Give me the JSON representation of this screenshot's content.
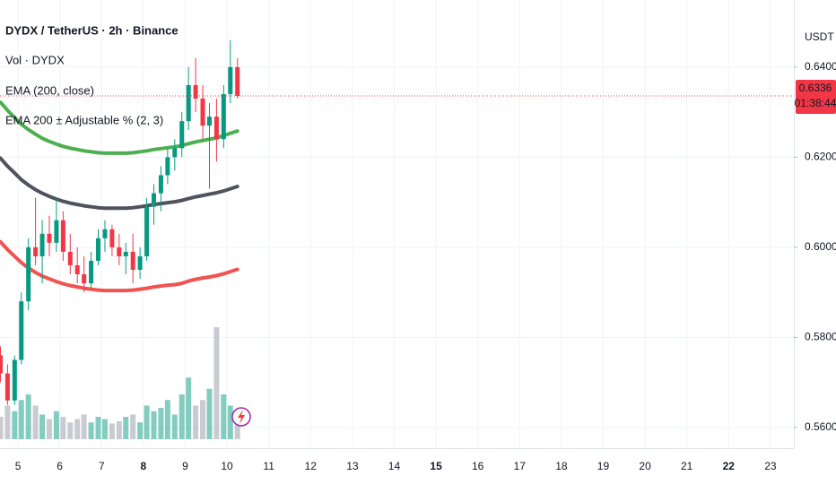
{
  "chart_data": {
    "type": "candlestick",
    "title": "DYDX / TetherUS · 2h · Binance",
    "indicators": [
      "Vol · DYDX",
      "EMA (200, close)",
      "EMA 200 ± Adjustable % (2, 3)"
    ],
    "currency": "USDT",
    "countdown": "01:38:44",
    "x": [
      4.58,
      4.75,
      4.92,
      5.08,
      5.25,
      5.42,
      5.58,
      5.75,
      5.92,
      6.08,
      6.25,
      6.42,
      6.58,
      6.75,
      6.92,
      7.08,
      7.25,
      7.42,
      7.58,
      7.75,
      7.92,
      8.08,
      8.25,
      8.42,
      8.58,
      8.75,
      8.92,
      9.08,
      9.25,
      9.42,
      9.58,
      9.75,
      9.92,
      10.08,
      10.25
    ],
    "open": [
      0.576,
      0.572,
      0.566,
      0.575,
      0.588,
      0.6,
      0.598,
      0.603,
      0.601,
      0.606,
      0.599,
      0.596,
      0.594,
      0.592,
      0.597,
      0.602,
      0.604,
      0.6,
      0.598,
      0.599,
      0.595,
      0.598,
      0.609,
      0.612,
      0.616,
      0.62,
      0.622,
      0.628,
      0.636,
      0.633,
      0.627,
      0.629,
      0.624,
      0.634,
      0.64
    ],
    "high": [
      0.578,
      0.574,
      0.576,
      0.59,
      0.602,
      0.611,
      0.606,
      0.607,
      0.611,
      0.608,
      0.603,
      0.6,
      0.598,
      0.599,
      0.604,
      0.606,
      0.605,
      0.603,
      0.601,
      0.603,
      0.6,
      0.611,
      0.614,
      0.618,
      0.622,
      0.624,
      0.63,
      0.64,
      0.642,
      0.636,
      0.632,
      0.633,
      0.636,
      0.646,
      0.642
    ],
    "low": [
      0.57,
      0.565,
      0.565,
      0.574,
      0.586,
      0.596,
      0.592,
      0.598,
      0.599,
      0.597,
      0.594,
      0.592,
      0.59,
      0.591,
      0.596,
      0.599,
      0.598,
      0.596,
      0.594,
      0.592,
      0.593,
      0.597,
      0.605,
      0.608,
      0.614,
      0.617,
      0.62,
      0.626,
      0.63,
      0.624,
      0.613,
      0.619,
      0.622,
      0.632,
      0.633
    ],
    "close": [
      0.572,
      0.566,
      0.575,
      0.588,
      0.6,
      0.598,
      0.603,
      0.601,
      0.606,
      0.599,
      0.596,
      0.594,
      0.592,
      0.597,
      0.602,
      0.604,
      0.6,
      0.598,
      0.599,
      0.595,
      0.598,
      0.609,
      0.612,
      0.616,
      0.62,
      0.622,
      0.628,
      0.636,
      0.633,
      0.627,
      0.629,
      0.624,
      0.634,
      0.64,
      0.6336
    ],
    "volume": [
      20,
      30,
      25,
      35,
      40,
      30,
      22,
      18,
      25,
      20,
      15,
      18,
      22,
      15,
      20,
      18,
      14,
      16,
      20,
      22,
      15,
      30,
      25,
      28,
      35,
      22,
      40,
      55,
      30,
      35,
      45,
      100,
      40,
      30,
      25
    ],
    "up_color": "#089981",
    "down_color": "#f23645",
    "lines": [
      {
        "color": "#4caf50",
        "values": [
          0.6322,
          0.6304,
          0.6288,
          0.6273,
          0.6261,
          0.6251,
          0.6242,
          0.6235,
          0.6229,
          0.6224,
          0.622,
          0.6217,
          0.6214,
          0.6212,
          0.621,
          0.6209,
          0.6209,
          0.6209,
          0.6209,
          0.621,
          0.6212,
          0.6214,
          0.6217,
          0.6219,
          0.6221,
          0.6223,
          0.6226,
          0.623,
          0.6234,
          0.6237,
          0.624,
          0.6243,
          0.6248,
          0.6253,
          0.6258
        ]
      },
      {
        "color": "#50535e",
        "values": [
          0.6198,
          0.618,
          0.6165,
          0.615,
          0.6138,
          0.6128,
          0.612,
          0.6113,
          0.6107,
          0.6102,
          0.6098,
          0.6095,
          0.6092,
          0.609,
          0.6088,
          0.6087,
          0.6087,
          0.6087,
          0.6087,
          0.6088,
          0.609,
          0.6092,
          0.6095,
          0.6097,
          0.6099,
          0.6101,
          0.6104,
          0.6108,
          0.6112,
          0.6115,
          0.6118,
          0.6121,
          0.6125,
          0.613,
          0.6135
        ]
      },
      {
        "color": "#f05350",
        "values": [
          0.6012,
          0.5995,
          0.598,
          0.5966,
          0.5954,
          0.5944,
          0.5936,
          0.593,
          0.5924,
          0.5919,
          0.5915,
          0.5912,
          0.5909,
          0.5907,
          0.5905,
          0.5904,
          0.5904,
          0.5904,
          0.5904,
          0.5905,
          0.5907,
          0.5909,
          0.5912,
          0.5914,
          0.5916,
          0.5917,
          0.592,
          0.5925,
          0.5929,
          0.5932,
          0.5934,
          0.5937,
          0.5941,
          0.5946,
          0.5951
        ]
      }
    ],
    "xlim": [
      4.57,
      23.56
    ],
    "xticks": [
      5,
      6,
      7,
      8,
      9,
      10,
      11,
      12,
      13,
      14,
      15,
      16,
      17,
      18,
      19,
      20,
      21,
      22,
      23
    ],
    "bold_xticks": [
      8,
      15,
      22
    ],
    "ylim": [
      0.5554,
      0.6549
    ],
    "yticks": [
      {
        "value": 0.56,
        "label": "0.5600"
      },
      {
        "value": 0.58,
        "label": "0.5800"
      },
      {
        "value": 0.6,
        "label": "0.6000"
      },
      {
        "value": 0.62,
        "label": "0.6200"
      },
      {
        "value": 0.64,
        "label": "0.6400"
      }
    ],
    "grid": true
  }
}
